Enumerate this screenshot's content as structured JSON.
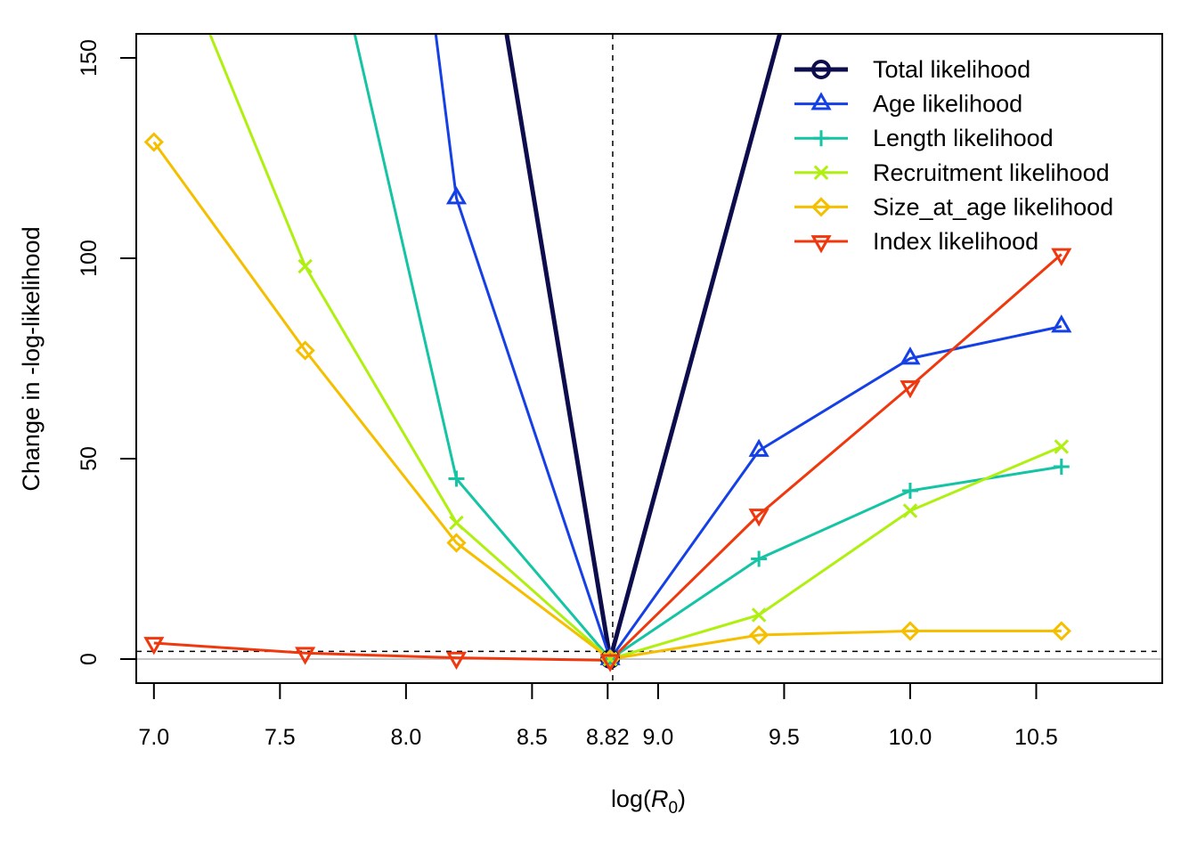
{
  "chart_data": {
    "type": "line",
    "xlabel": "log(",
    "xlabel_symbol": "R",
    "xlabel_sub": "0",
    "xlabel_close": ")",
    "ylabel": "Change in -log-likelihood",
    "xlim": [
      6.93,
      11.0
    ],
    "ylim": [
      -6,
      156
    ],
    "x_ticks": [
      {
        "value": 7.0,
        "label": "7.0"
      },
      {
        "value": 7.5,
        "label": "7.5"
      },
      {
        "value": 8.0,
        "label": "8.0"
      },
      {
        "value": 8.5,
        "label": "8.5"
      },
      {
        "value": 8.8,
        "label": "8.82"
      },
      {
        "value": 9.0,
        "label": "9.0"
      },
      {
        "value": 9.5,
        "label": "9.5"
      },
      {
        "value": 10.0,
        "label": "10.0"
      },
      {
        "value": 10.5,
        "label": "10.5"
      }
    ],
    "y_ticks": [
      {
        "value": 0,
        "label": "0"
      },
      {
        "value": 50,
        "label": "50"
      },
      {
        "value": 100,
        "label": "100"
      },
      {
        "value": 150,
        "label": "150"
      }
    ],
    "mle_x": 8.82,
    "threshold_y": 1.92,
    "legend_position": "top-right",
    "series": [
      {
        "name": "Total likelihood",
        "color": "#0d0d4d",
        "marker": "circle",
        "thick": true,
        "x": [
          8.02,
          8.81,
          9.5
        ],
        "y": [
          300,
          0,
          160
        ]
      },
      {
        "name": "Age likelihood",
        "color": "#1540e6",
        "marker": "triangle-up",
        "x": [
          8.11,
          8.2,
          8.81,
          9.4,
          10.0,
          10.6
        ],
        "y": [
          160,
          115,
          0,
          52,
          75,
          83
        ]
      },
      {
        "name": "Length likelihood",
        "color": "#14c4a4",
        "marker": "plus",
        "x": [
          7.6,
          8.2,
          8.81,
          9.4,
          10.0,
          10.6
        ],
        "y": [
          210,
          45,
          0,
          25,
          42,
          48
        ]
      },
      {
        "name": "Recruitment likelihood",
        "color": "#b0f010",
        "marker": "cross",
        "x": [
          7.0,
          7.6,
          8.2,
          8.81,
          9.4,
          10.0,
          10.6
        ],
        "y": [
          190,
          98,
          34,
          0,
          11,
          37,
          53
        ]
      },
      {
        "name": "Size_at_age likelihood",
        "color": "#f5bf00",
        "marker": "diamond",
        "x": [
          7.0,
          7.6,
          8.2,
          8.81,
          9.4,
          10.0,
          10.6
        ],
        "y": [
          129,
          77,
          29,
          0,
          6,
          7,
          7
        ]
      },
      {
        "name": "Index likelihood",
        "color": "#f0380f",
        "marker": "triangle-down",
        "x": [
          7.0,
          7.6,
          8.2,
          8.81,
          9.4,
          10.0,
          10.6
        ],
        "y": [
          4,
          1.5,
          0.3,
          -0.3,
          36,
          68,
          101
        ]
      }
    ]
  }
}
